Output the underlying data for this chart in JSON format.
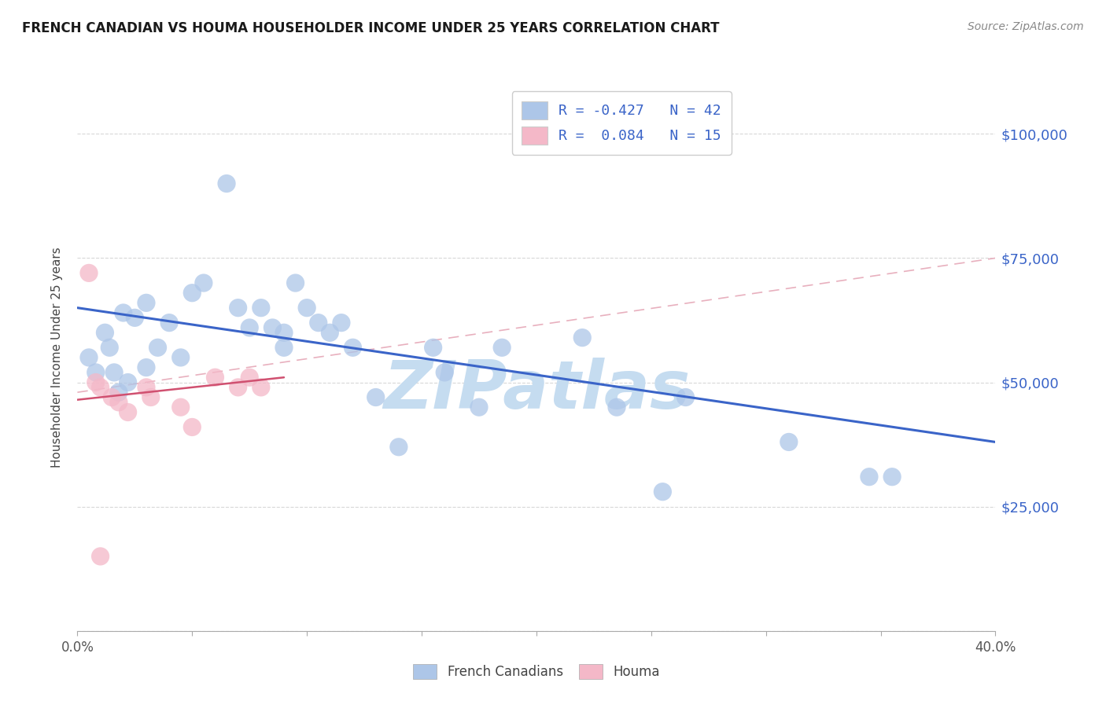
{
  "title": "FRENCH CANADIAN VS HOUMA HOUSEHOLDER INCOME UNDER 25 YEARS CORRELATION CHART",
  "source": "Source: ZipAtlas.com",
  "ylabel": "Householder Income Under 25 years",
  "x_min": 0.0,
  "x_max": 0.4,
  "y_min": 0,
  "y_max": 110000,
  "x_ticks": [
    0.0,
    0.05,
    0.1,
    0.15,
    0.2,
    0.25,
    0.3,
    0.35,
    0.4
  ],
  "x_tick_labels": [
    "0.0%",
    "",
    "",
    "",
    "",
    "",
    "",
    "",
    "40.0%"
  ],
  "y_ticks": [
    0,
    25000,
    50000,
    75000,
    100000
  ],
  "y_tick_labels": [
    "",
    "$25,000",
    "$50,000",
    "$75,000",
    "$100,000"
  ],
  "legend_entries": [
    {
      "label": "R = -0.427   N = 42",
      "color": "#adc6e8"
    },
    {
      "label": "R =  0.084   N = 15",
      "color": "#f4b8c8"
    }
  ],
  "bottom_legend": [
    "French Canadians",
    "Houma"
  ],
  "french_canadians_x": [
    0.005,
    0.008,
    0.012,
    0.014,
    0.016,
    0.018,
    0.02,
    0.022,
    0.025,
    0.03,
    0.03,
    0.035,
    0.04,
    0.045,
    0.05,
    0.055,
    0.065,
    0.07,
    0.075,
    0.08,
    0.085,
    0.09,
    0.09,
    0.095,
    0.1,
    0.105,
    0.11,
    0.115,
    0.12,
    0.13,
    0.14,
    0.155,
    0.16,
    0.175,
    0.185,
    0.22,
    0.235,
    0.255,
    0.265,
    0.31,
    0.345,
    0.355
  ],
  "french_canadians_y": [
    55000,
    52000,
    60000,
    57000,
    52000,
    48000,
    64000,
    50000,
    63000,
    66000,
    53000,
    57000,
    62000,
    55000,
    68000,
    70000,
    90000,
    65000,
    61000,
    65000,
    61000,
    60000,
    57000,
    70000,
    65000,
    62000,
    60000,
    62000,
    57000,
    47000,
    37000,
    57000,
    52000,
    45000,
    57000,
    59000,
    45000,
    28000,
    47000,
    38000,
    31000,
    31000
  ],
  "houma_x": [
    0.005,
    0.008,
    0.01,
    0.015,
    0.018,
    0.022,
    0.03,
    0.032,
    0.045,
    0.05,
    0.06,
    0.07,
    0.075,
    0.08,
    0.01
  ],
  "houma_y": [
    72000,
    50000,
    49000,
    47000,
    46000,
    44000,
    49000,
    47000,
    45000,
    41000,
    51000,
    49000,
    51000,
    49000,
    15000
  ],
  "blue_line_x": [
    0.0,
    0.4
  ],
  "blue_line_y": [
    65000,
    38000
  ],
  "pink_solid_line_x": [
    0.0,
    0.09
  ],
  "pink_solid_line_y": [
    46500,
    51000
  ],
  "pink_dashed_line_x": [
    0.0,
    0.4
  ],
  "pink_dashed_line_y": [
    48000,
    75000
  ],
  "title_color": "#1a1a1a",
  "title_color_blue": "#3060c0",
  "blue_dot_color": "#adc6e8",
  "pink_dot_color": "#f4b8c8",
  "blue_line_color": "#3a64c8",
  "pink_solid_line_color": "#d05070",
  "pink_dashed_line_color": "#e8b0be",
  "grid_color": "#d8d8d8",
  "right_axis_color": "#3a64c8",
  "watermark_text": "ZIPatlas",
  "watermark_color": "#c5dcf0"
}
